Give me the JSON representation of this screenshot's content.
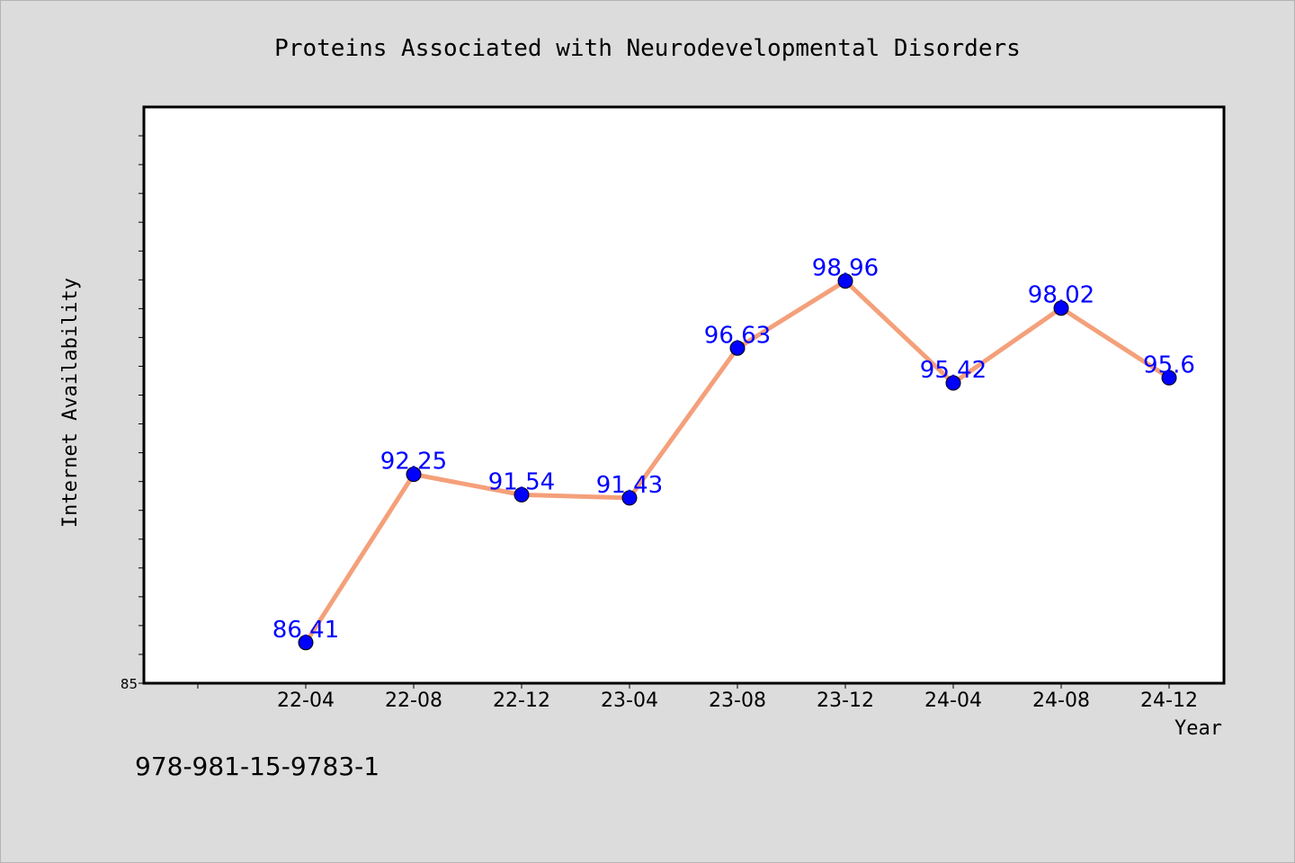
{
  "chart_data": {
    "type": "line",
    "title": "Proteins Associated with Neurodevelopmental Disorders",
    "xlabel": "Year",
    "ylabel": "Internet Availability",
    "categories": [
      "22-04",
      "22-08",
      "22-12",
      "23-04",
      "23-08",
      "23-12",
      "24-04",
      "24-08",
      "24-12"
    ],
    "series": [
      {
        "values": [
          86.41,
          92.25,
          91.54,
          91.43,
          96.63,
          98.96,
          95.42,
          98.02,
          95.6
        ],
        "labels": [
          "86.41",
          "92.25",
          "91.54",
          "91.43",
          "96.63",
          "98.96",
          "95.42",
          "98.02",
          "95.6"
        ]
      }
    ],
    "ylim": [
      85,
      105
    ],
    "y_tick_labels": [
      "85"
    ],
    "grid": false,
    "line_color": "#f4a07a",
    "marker_color": "#0000ff",
    "label_color": "#0000ff"
  },
  "footer": {
    "isbn": "978-981-15-9783-1"
  }
}
